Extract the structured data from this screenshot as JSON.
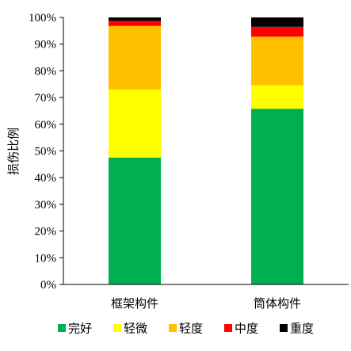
{
  "chart_data": {
    "type": "bar",
    "stacked": true,
    "normalized": true,
    "categories": [
      "框架构件",
      "筒体构件"
    ],
    "series": [
      {
        "name": "完好",
        "color": "#00b050",
        "values": [
          47.5,
          65.8
        ]
      },
      {
        "name": "轻微",
        "color": "#ffff00",
        "values": [
          25.5,
          8.8
        ]
      },
      {
        "name": "轻度",
        "color": "#ffc000",
        "values": [
          23.8,
          18.2
        ]
      },
      {
        "name": "中度",
        "color": "#ff0000",
        "values": [
          1.9,
          3.7
        ]
      },
      {
        "name": "重度",
        "color": "#000000",
        "values": [
          1.3,
          3.5
        ]
      }
    ],
    "ylabel": "损伤比例",
    "ylim": [
      0,
      100
    ],
    "yticks": [
      "0%",
      "10%",
      "20%",
      "30%",
      "40%",
      "50%",
      "60%",
      "70%",
      "80%",
      "90%",
      "100%"
    ],
    "grid": false,
    "legend_position": "bottom"
  }
}
